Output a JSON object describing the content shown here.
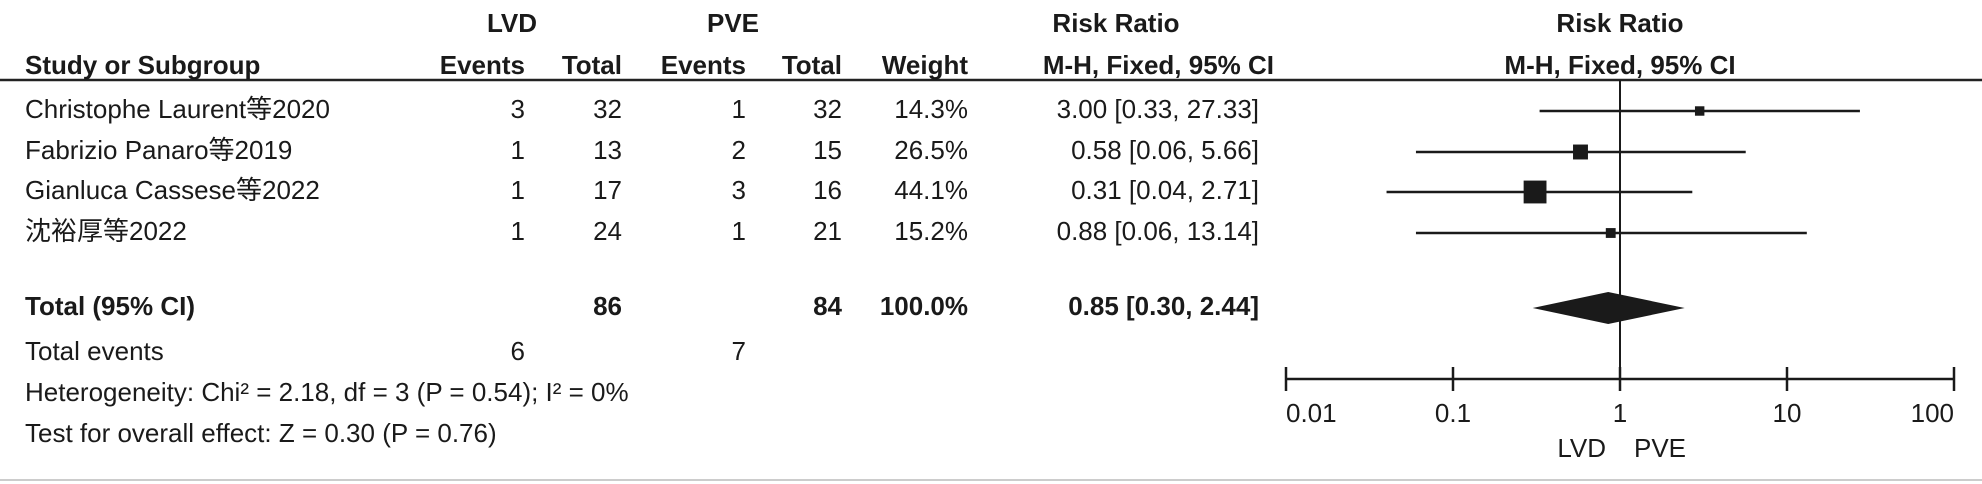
{
  "chart_data": {
    "type": "forest",
    "group_headers": [
      "LVD",
      "PVE"
    ],
    "column_headers": [
      "Study or Subgroup",
      "Events",
      "Total",
      "Events",
      "Total",
      "Weight",
      "M-H, Fixed, 95% CI"
    ],
    "effect_header": "Risk Ratio",
    "studies": [
      {
        "name": "Christophe Laurent等2020",
        "events1": 3,
        "total1": 32,
        "events2": 1,
        "total2": 32,
        "weight": 14.3,
        "weight_label": "14.3%",
        "rr": 3.0,
        "lo": 0.33,
        "hi": 27.33,
        "ci_label": "3.00 [0.33, 27.33]"
      },
      {
        "name": "Fabrizio Panaro等2019",
        "events1": 1,
        "total1": 13,
        "events2": 2,
        "total2": 15,
        "weight": 26.5,
        "weight_label": "26.5%",
        "rr": 0.58,
        "lo": 0.06,
        "hi": 5.66,
        "ci_label": "0.58 [0.06, 5.66]"
      },
      {
        "name": "Gianluca Cassese等2022",
        "events1": 1,
        "total1": 17,
        "events2": 3,
        "total2": 16,
        "weight": 44.1,
        "weight_label": "44.1%",
        "rr": 0.31,
        "lo": 0.04,
        "hi": 2.71,
        "ci_label": "0.31 [0.04, 2.71]"
      },
      {
        "name": "沈裕厚等2022",
        "events1": 1,
        "total1": 24,
        "events2": 1,
        "total2": 21,
        "weight": 15.2,
        "weight_label": "15.2%",
        "rr": 0.88,
        "lo": 0.06,
        "hi": 13.14,
        "ci_label": "0.88 [0.06, 13.14]"
      }
    ],
    "total": {
      "name": "Total (95% CI)",
      "total1": 86,
      "total2": 84,
      "weight_label": "100.0%",
      "rr": 0.85,
      "lo": 0.3,
      "hi": 2.44,
      "ci_label": "0.85 [0.30, 2.44]"
    },
    "total_events": {
      "name": "Total events",
      "events1": 6,
      "events2": 7
    },
    "heterogeneity": "Heterogeneity: Chi² = 2.18, df = 3 (P = 0.54); I² = 0%",
    "overall_effect": "Test for overall effect: Z = 0.30 (P = 0.76)",
    "log_x": true,
    "xlim": [
      0.01,
      100
    ],
    "xticks": [
      0.01,
      0.1,
      1,
      10,
      100
    ],
    "color": "#1a1a1a"
  }
}
